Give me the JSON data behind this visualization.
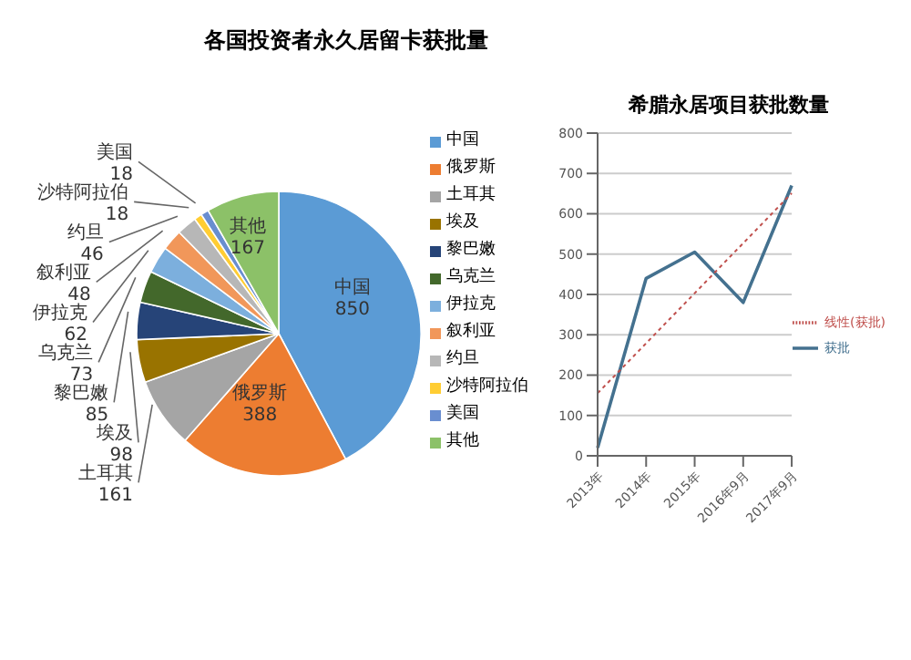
{
  "chart_data": [
    {
      "type": "pie",
      "title": "各国投资者永久居留卡获批量",
      "categories": [
        "中国",
        "俄罗斯",
        "土耳其",
        "埃及",
        "黎巴嫩",
        "乌克兰",
        "伊拉克",
        "叙利亚",
        "约旦",
        "沙特阿拉伯",
        "美国",
        "其他"
      ],
      "values": [
        850,
        388,
        161,
        98,
        85,
        73,
        62,
        48,
        46,
        18,
        18,
        167
      ],
      "colors": [
        "#5b9bd5",
        "#ed7d31",
        "#a5a5a5",
        "#997300",
        "#264478",
        "#43682b",
        "#7cafdd",
        "#f1975a",
        "#b7b7b7",
        "#ffcd33",
        "#698ed0",
        "#8cc168"
      ],
      "data_labels": true,
      "legend": "right"
    },
    {
      "type": "line",
      "title": "希腊永居项目获批数量",
      "categories": [
        "2013年",
        "2014年",
        "2015年",
        "2016年9月",
        "2017年9月"
      ],
      "series": [
        {
          "name": "获批",
          "color": "#44718f",
          "values": [
            20,
            440,
            505,
            380,
            670
          ]
        },
        {
          "name": "线性(获批)",
          "color": "#c0504d",
          "values": [
            155,
            279,
            403,
            527,
            651
          ],
          "line_style": "dotted"
        }
      ],
      "ylim": [
        0,
        800
      ],
      "yticks": [
        0,
        100,
        200,
        300,
        400,
        500,
        600,
        700,
        800
      ],
      "grid": "y",
      "legend": "right",
      "marker": "none"
    }
  ]
}
